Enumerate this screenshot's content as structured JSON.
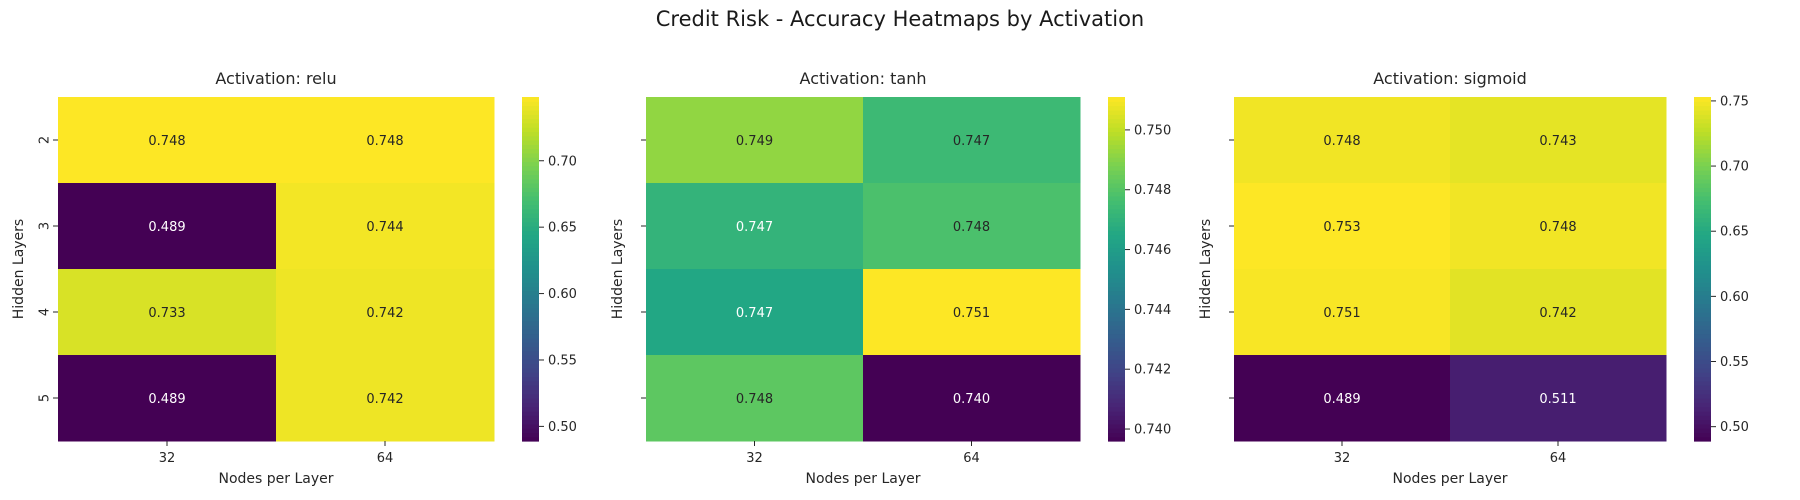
{
  "figure": {
    "title": "Credit Risk - Accuracy Heatmaps by Activation"
  },
  "chart_data": [
    {
      "type": "heatmap",
      "title": "Activation: relu",
      "xlabel": "Nodes per Layer",
      "ylabel": "Hidden Layers",
      "x": [
        "32",
        "64"
      ],
      "y": [
        "2",
        "3",
        "4",
        "5"
      ],
      "values": [
        [
          0.748,
          0.748
        ],
        [
          0.489,
          0.744
        ],
        [
          0.733,
          0.742
        ],
        [
          0.489,
          0.742
        ]
      ],
      "labels": [
        [
          "0.748",
          "0.748"
        ],
        [
          "0.489",
          "0.744"
        ],
        [
          "0.733",
          "0.742"
        ],
        [
          "0.489",
          "0.742"
        ]
      ],
      "colormap": "viridis",
      "vmin": 0.489,
      "vmax": 0.748,
      "colorbar_ticks": [
        0.5,
        0.55,
        0.6,
        0.65,
        0.7
      ],
      "colorbar_tick_labels": [
        "0.50",
        "0.55",
        "0.60",
        "0.65",
        "0.70"
      ],
      "show_y_ticklabels": true
    },
    {
      "type": "heatmap",
      "title": "Activation: tanh",
      "xlabel": "Nodes per Layer",
      "ylabel": "Hidden Layers",
      "x": [
        "32",
        "64"
      ],
      "y": [
        "2",
        "3",
        "4",
        "5"
      ],
      "values": [
        [
          0.7492,
          0.7474
        ],
        [
          0.7471,
          0.7478
        ],
        [
          0.7465,
          0.7511
        ],
        [
          0.7482,
          0.7396
        ]
      ],
      "labels": [
        [
          "0.749",
          "0.747"
        ],
        [
          "0.747",
          "0.748"
        ],
        [
          "0.747",
          "0.751"
        ],
        [
          "0.748",
          "0.740"
        ]
      ],
      "colormap": "viridis",
      "vmin": 0.7396,
      "vmax": 0.7511,
      "colorbar_ticks": [
        0.74,
        0.742,
        0.744,
        0.746,
        0.748,
        0.75
      ],
      "colorbar_tick_labels": [
        "0.740",
        "0.742",
        "0.744",
        "0.746",
        "0.748",
        "0.750"
      ],
      "show_y_ticklabels": false
    },
    {
      "type": "heatmap",
      "title": "Activation: sigmoid",
      "xlabel": "Nodes per Layer",
      "ylabel": "Hidden Layers",
      "x": [
        "32",
        "64"
      ],
      "y": [
        "2",
        "3",
        "4",
        "5"
      ],
      "values": [
        [
          0.748,
          0.743
        ],
        [
          0.753,
          0.748
        ],
        [
          0.751,
          0.742
        ],
        [
          0.489,
          0.511
        ]
      ],
      "labels": [
        [
          "0.748",
          "0.743"
        ],
        [
          "0.753",
          "0.748"
        ],
        [
          "0.751",
          "0.742"
        ],
        [
          "0.489",
          "0.511"
        ]
      ],
      "colormap": "viridis",
      "vmin": 0.489,
      "vmax": 0.753,
      "colorbar_ticks": [
        0.5,
        0.55,
        0.6,
        0.65,
        0.7,
        0.75
      ],
      "colorbar_tick_labels": [
        "0.50",
        "0.55",
        "0.60",
        "0.65",
        "0.70",
        "0.75"
      ],
      "show_y_ticklabels": false
    }
  ]
}
